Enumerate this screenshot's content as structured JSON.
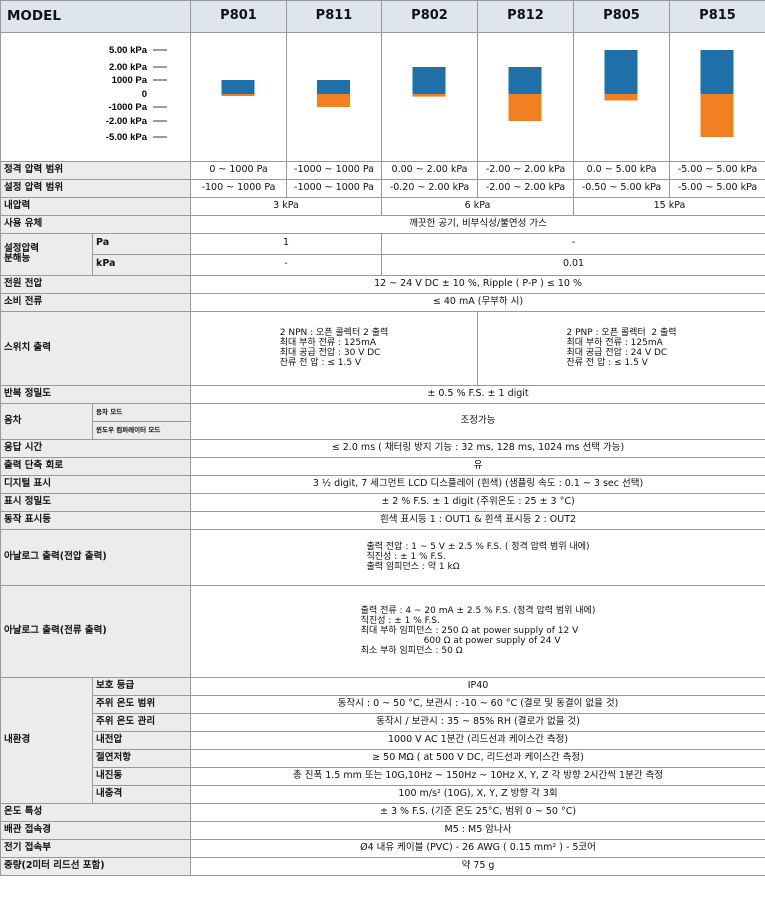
{
  "header": {
    "model_label": "MODEL",
    "models": [
      "P801",
      "P811",
      "P802",
      "P812",
      "P805",
      "P815"
    ]
  },
  "chart_data": {
    "type": "bar",
    "ticks": [
      "5.00 kPa",
      "2.00 kPa",
      "1000 Pa",
      "0",
      "-1000 Pa",
      "-2.00 kPa",
      "-5.00 kPa"
    ],
    "categories": [
      "P801",
      "P811",
      "P802",
      "P812",
      "P805",
      "P815"
    ],
    "series": [
      {
        "values": [
          [
            0,
            1000
          ],
          [
            0,
            1000
          ],
          [
            0,
            2000
          ],
          [
            0,
            2000
          ],
          [
            0,
            5000
          ],
          [
            0,
            5000
          ]
        ]
      },
      {
        "values": [
          [
            -100,
            0
          ],
          [
            -1000,
            0
          ],
          [
            -200,
            0
          ],
          [
            -2000,
            0
          ],
          [
            -500,
            0
          ],
          [
            -5000,
            0
          ]
        ]
      }
    ],
    "colors": {
      "rated": "#1f6fa9",
      "set": "#f08020"
    }
  },
  "rows": {
    "rated_range": {
      "label": "정격 압력 범위",
      "values": [
        "0 ~ 1000 Pa",
        "-1000 ~ 1000 Pa",
        "0.00 ~ 2.00 kPa",
        "-2.00 ~ 2.00 kPa",
        "0.0 ~ 5.00 kPa",
        "-5.00 ~ 5.00 kPa"
      ]
    },
    "set_range": {
      "label": "설정 압력 범위",
      "values": [
        "-100 ~ 1000 Pa",
        "-1000 ~ 1000 Pa",
        "-0.20 ~ 2.00 kPa",
        "-2.00 ~ 2.00 kPa",
        "-0.50 ~ 5.00 kPa",
        "-5.00 ~ 5.00 kPa"
      ]
    },
    "proof": {
      "label": "내압력",
      "values": [
        "3 kPa",
        "6 kPa",
        "15 kPa"
      ]
    },
    "fluid": {
      "label": "사용 유체",
      "value": "깨끗한 공기, 비부식성/불연성 가스"
    },
    "resolution": {
      "label": "설정압력\n분해능",
      "pa_label": "Pa",
      "kpa_label": "kPa",
      "pa_values": [
        "1",
        "-"
      ],
      "kpa_values": [
        "-",
        "0.01"
      ]
    },
    "supply": {
      "label": "전원 전압",
      "value": "12 ~ 24 V DC ± 10 %, Ripple ( P-P ) ≤ 10 %"
    },
    "current": {
      "label": "소비 전류",
      "value": "≤ 40 mA (무부하 시)"
    },
    "switch": {
      "label": "스위치 출력",
      "npn": "2 NPN : 오픈 콜렉터 2 출력\n최대 부하 전류 : 125mA\n최대 공급 전압 : 30 V DC\n잔류 전 압 : ≤ 1.5 V",
      "pnp": "2 PNP : 오픈 콜렉터  2 출력\n최대 부하 전류 : 125mA\n최대 공급 전압 : 24 V DC\n잔류 전 압 : ≤ 1.5 V"
    },
    "repeat": {
      "label": "반복 정밀도",
      "value": "± 0.5 % F.S. ± 1 digit"
    },
    "hysteresis": {
      "label": "응차",
      "sub1": "응차 모드",
      "sub2": "윈도우 컴퍼레이터 모드",
      "value": "조정가능"
    },
    "response": {
      "label": "응답 시간",
      "value": "≤ 2.0 ms ( 채터링 방지 기능 : 32 ms, 128 ms, 1024 ms 선택 가능)"
    },
    "short": {
      "label": "출력 단축 회로",
      "value": "유"
    },
    "display": {
      "label": "디지털 표시",
      "value": "3 ½ digit, 7 세그먼트 LCD 디스플레이 (흰색) (샘플링 속도 : 0.1 ~ 3 sec 선택)"
    },
    "disp_acc": {
      "label": "표시 정밀도",
      "value": "± 2 % F.S. ± 1 digit (주위온도 : 25 ± 3 °C)"
    },
    "indicator": {
      "label": "동작 표시등",
      "value": "흰색 표시등 1 : OUT1 &  흰색 표시등 2 : OUT2"
    },
    "analog_v": {
      "label": "아날로그 출력(전압 출력)",
      "value": "출력 전압 : 1 ~ 5 V ± 2.5 % F.S. ( 정격 압력 범위 내에)\n직진성 : ± 1 % F.S.\n출력 임피던스 : 약 1 kΩ"
    },
    "analog_i": {
      "label": "아날로그 출력(전류 출력)",
      "value": "출력 전류 : 4 ~ 20 mA ± 2.5 % F.S. (정격 압력 범위 내에)\n직진성 : ± 1 % F.S.\n최대 부하 임피던스 : 250 Ω at power supply of 12 V\n                      600 Ω at power supply of 24 V\n최소 부하 임피던스 : 50 Ω"
    },
    "env": {
      "label": "내환경",
      "items": [
        {
          "label": "보호 등급",
          "value": "IP40"
        },
        {
          "label": "주위 온도 범위",
          "value": "동작시 : 0 ~ 50 °C, 보관시 : -10 ~ 60 °C (결로 및 동결이 없을 것)"
        },
        {
          "label": "주위 온도 관리",
          "value": "동작시 / 보관시 : 35 ~ 85% RH (결로가 없을 것)"
        },
        {
          "label": "내전압",
          "value": "1000 V AC 1분간 (리드선과 케이스간 측정)"
        },
        {
          "label": "절연저항",
          "value": "≥ 50 MΩ ( at 500 V DC, 리드선과 케이스간 측정)"
        },
        {
          "label": "내진동",
          "value": "총 진폭 1.5 mm 또는 10G,10Hz ~ 150Hz ~ 10Hz X, Y, Z 각 방향 2시간씩 1분간 측정"
        },
        {
          "label": "내충격",
          "value": "100 m/s² (10G), X, Y, Z 방향 각 3회"
        }
      ]
    },
    "temp": {
      "label": "온도 특성",
      "value": "±  3 % F.S. (기준 온도 25°C, 범위 0 ~ 50 °C)"
    },
    "port": {
      "label": "배관 접속경",
      "value": "M5 : M5 암나사"
    },
    "wire": {
      "label": "전기 접속부",
      "value": "Ø4 내유 케이블 (PVC) - 26 AWG ( 0.15 mm² ) - 5코어"
    },
    "weight": {
      "label": "중량(2미터 리드선 포함)",
      "value": "약 75 g"
    }
  }
}
